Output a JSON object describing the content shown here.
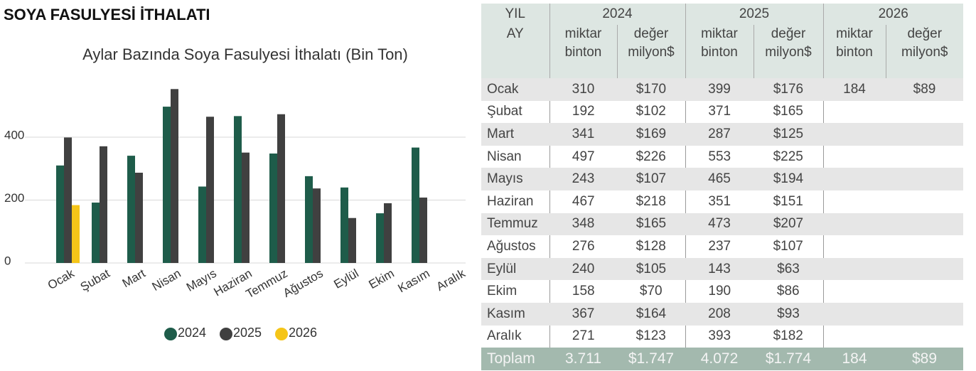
{
  "page_title": "SOYA FASULYESİ İTHALATI",
  "chart_data": {
    "type": "bar",
    "title": "Aylar Bazında Soya Fasulyesi İthalatı (Bin Ton)",
    "categories": [
      "Ocak",
      "Şubat",
      "Mart",
      "Nisan",
      "Mayıs",
      "Haziran",
      "Temmuz",
      "Ağustos",
      "Eylül",
      "Ekim",
      "Kasım",
      "Aralık"
    ],
    "series": [
      {
        "name": "2024",
        "color": "#1e5c4a",
        "values": [
          310,
          192,
          341,
          497,
          243,
          467,
          348,
          276,
          240,
          158,
          367,
          null
        ]
      },
      {
        "name": "2025",
        "color": "#404040",
        "values": [
          399,
          371,
          287,
          553,
          465,
          351,
          473,
          237,
          143,
          190,
          208,
          null
        ]
      },
      {
        "name": "2026",
        "color": "#f5c518",
        "values": [
          184,
          null,
          null,
          null,
          null,
          null,
          null,
          null,
          null,
          null,
          null,
          null
        ]
      }
    ],
    "ylim": [
      0,
      600
    ],
    "yticks": [
      0,
      200,
      400
    ],
    "grid": true,
    "legend": "bottom"
  },
  "table": {
    "header": {
      "year_label": "YIL",
      "years": [
        "2024",
        "2025",
        "2026"
      ],
      "month_label": "AY",
      "sub": [
        "miktar binton",
        "değer milyon$"
      ]
    },
    "rows": [
      [
        "Ocak",
        "310",
        "$170",
        "399",
        "$176",
        "184",
        "$89"
      ],
      [
        "Şubat",
        "192",
        "$102",
        "371",
        "$165"
      ],
      [
        "Mart",
        "341",
        "$169",
        "287",
        "$125"
      ],
      [
        "Nisan",
        "497",
        "$226",
        "553",
        "$225"
      ],
      [
        "Mayıs",
        "243",
        "$107",
        "465",
        "$194"
      ],
      [
        "Haziran",
        "467",
        "$218",
        "351",
        "$151"
      ],
      [
        "Temmuz",
        "348",
        "$165",
        "473",
        "$207"
      ],
      [
        "Ağustos",
        "276",
        "$128",
        "237",
        "$107"
      ],
      [
        "Eylül",
        "240",
        "$105",
        "143",
        "$63"
      ],
      [
        "Ekim",
        "158",
        "$70",
        "190",
        "$86"
      ],
      [
        "Kasım",
        "367",
        "$164",
        "208",
        "$93"
      ],
      [
        "Aralık",
        "271",
        "$123",
        "393",
        "$182"
      ]
    ],
    "total": [
      "Toplam",
      "3.711",
      "$1.747",
      "4.072",
      "$1.774",
      "184",
      "$89"
    ]
  }
}
